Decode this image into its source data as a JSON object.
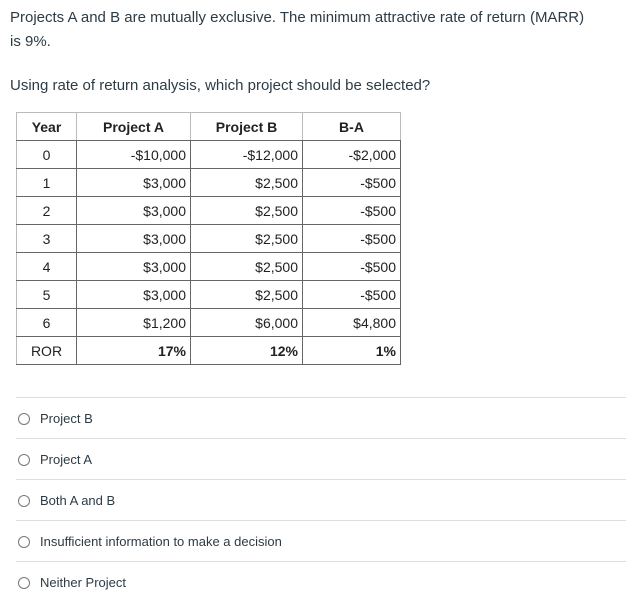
{
  "question": {
    "lines": [
      "Projects A and B are mutually exclusive. The minimum attractive rate of return (MARR)",
      "is 9%."
    ],
    "prompt": "Using rate of return analysis, which project should be selected?"
  },
  "table": {
    "headers": [
      "Year",
      "Project A",
      "Project B",
      "B-A"
    ],
    "rows": [
      [
        "0",
        "-$10,000",
        "-$12,000",
        "-$2,000"
      ],
      [
        "1",
        "$3,000",
        "$2,500",
        "-$500"
      ],
      [
        "2",
        "$3,000",
        "$2,500",
        "-$500"
      ],
      [
        "3",
        "$3,000",
        "$2,500",
        "-$500"
      ],
      [
        "4",
        "$3,000",
        "$2,500",
        "-$500"
      ],
      [
        "5",
        "$3,000",
        "$2,500",
        "-$500"
      ],
      [
        "6",
        "$1,200",
        "$6,000",
        "$4,800"
      ],
      [
        "ROR",
        "17%",
        "12%",
        "1%"
      ]
    ]
  },
  "options": [
    "Project B",
    "Project A",
    "Both A and B",
    "Insufficient information to make a decision",
    "Neither Project"
  ]
}
